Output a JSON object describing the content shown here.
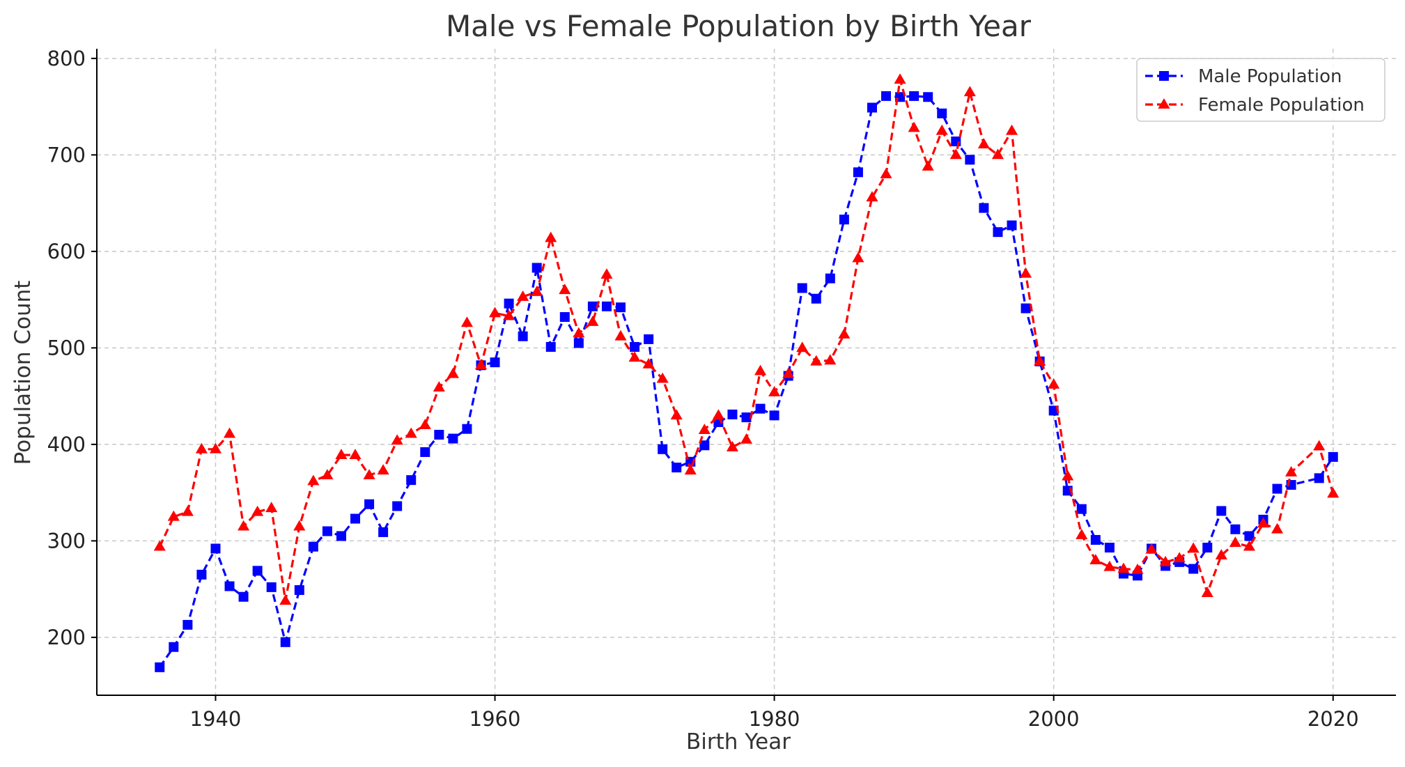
{
  "chart_data": {
    "type": "line",
    "title": "Male vs Female Population by Birth Year",
    "xlabel": "Birth Year",
    "ylabel": "Population Count",
    "xlim": [
      1931.5,
      2024.5
    ],
    "ylim": [
      140,
      810
    ],
    "x_ticks": [
      1940,
      1960,
      1980,
      2000,
      2020
    ],
    "y_ticks": [
      200,
      300,
      400,
      500,
      600,
      700,
      800
    ],
    "grid": true,
    "legend_position": "top-right",
    "x": [
      1936,
      1937,
      1938,
      1939,
      1940,
      1941,
      1942,
      1943,
      1944,
      1945,
      1946,
      1947,
      1948,
      1949,
      1950,
      1951,
      1952,
      1953,
      1954,
      1955,
      1956,
      1957,
      1958,
      1959,
      1960,
      1961,
      1962,
      1963,
      1964,
      1965,
      1966,
      1967,
      1968,
      1969,
      1970,
      1971,
      1972,
      1973,
      1974,
      1975,
      1976,
      1977,
      1978,
      1979,
      1980,
      1981,
      1982,
      1983,
      1984,
      1985,
      1986,
      1987,
      1988,
      1989,
      1990,
      1991,
      1992,
      1993,
      1994,
      1995,
      1996,
      1997,
      1998,
      1999,
      2000,
      2001,
      2002,
      2003,
      2004,
      2005,
      2006,
      2007,
      2008,
      2009,
      2010,
      2011,
      2012,
      2013,
      2014,
      2015,
      2016,
      2017,
      2019,
      2020
    ],
    "series": [
      {
        "name": "Male Population",
        "color": "#0000ff",
        "marker": "square",
        "x": [
          1936,
          1937,
          1938,
          1939,
          1940,
          1941,
          1942,
          1943,
          1944,
          1945,
          1946,
          1947,
          1948,
          1949,
          1950,
          1951,
          1952,
          1953,
          1954,
          1955,
          1956,
          1957,
          1958,
          1959,
          1960,
          1961,
          1962,
          1963,
          1964,
          1965,
          1966,
          1967,
          1968,
          1969,
          1970,
          1971,
          1972,
          1973,
          1974,
          1975,
          1976,
          1977,
          1978,
          1979,
          1980,
          1981,
          1982,
          1983,
          1984,
          1985,
          1986,
          1987,
          1988,
          1989,
          1990,
          1991,
          1992,
          1993,
          1994,
          1995,
          1996,
          1997,
          1998,
          1999,
          2000,
          2001,
          2002,
          2003,
          2004,
          2005,
          2006,
          2007,
          2008,
          2009,
          2010,
          2011,
          2012,
          2013,
          2014,
          2015,
          2016,
          2017,
          2019,
          2020
        ],
        "values": [
          169,
          190,
          213,
          265,
          292,
          253,
          242,
          269,
          252,
          195,
          249,
          294,
          310,
          305,
          323,
          338,
          309,
          336,
          363,
          392,
          410,
          406,
          416,
          482,
          485,
          546,
          512,
          583,
          501,
          532,
          505,
          543,
          543,
          542,
          501,
          509,
          395,
          376,
          382,
          399,
          423,
          431,
          428,
          437,
          430,
          471,
          562,
          551,
          572,
          633,
          682,
          749,
          761,
          760,
          761,
          760,
          743,
          714,
          695,
          645,
          620,
          627,
          541,
          486,
          435,
          352,
          333,
          301,
          293,
          266,
          264,
          292,
          274,
          278,
          271,
          293,
          331,
          312,
          305,
          322,
          354,
          358,
          365,
          387
        ]
      },
      {
        "name": "Female Population",
        "color": "#ff0000",
        "marker": "triangle",
        "x": [
          1936,
          1937,
          1938,
          1939,
          1940,
          1941,
          1942,
          1943,
          1944,
          1945,
          1946,
          1947,
          1948,
          1949,
          1950,
          1951,
          1952,
          1953,
          1954,
          1955,
          1956,
          1957,
          1958,
          1959,
          1960,
          1961,
          1962,
          1963,
          1964,
          1965,
          1966,
          1967,
          1968,
          1969,
          1970,
          1971,
          1972,
          1973,
          1974,
          1975,
          1976,
          1977,
          1978,
          1979,
          1980,
          1981,
          1982,
          1983,
          1984,
          1985,
          1986,
          1987,
          1988,
          1989,
          1990,
          1991,
          1992,
          1993,
          1994,
          1995,
          1996,
          1997,
          1998,
          1999,
          2000,
          2001,
          2002,
          2003,
          2004,
          2005,
          2006,
          2007,
          2008,
          2009,
          2010,
          2011,
          2012,
          2013,
          2014,
          2015,
          2016,
          2017,
          2019,
          2020
        ],
        "values": [
          294,
          325,
          330,
          395,
          395,
          411,
          315,
          330,
          334,
          238,
          315,
          362,
          368,
          389,
          389,
          368,
          373,
          404,
          411,
          420,
          459,
          473,
          526,
          482,
          536,
          533,
          553,
          558,
          614,
          560,
          515,
          527,
          576,
          512,
          490,
          483,
          468,
          430,
          373,
          415,
          430,
          397,
          405,
          476,
          454,
          473,
          500,
          486,
          487,
          514,
          593,
          656,
          680,
          778,
          728,
          688,
          725,
          700,
          765,
          711,
          700,
          725,
          577,
          486,
          462,
          367,
          306,
          280,
          273,
          271,
          270,
          291,
          278,
          282,
          292,
          246,
          285,
          298,
          294,
          318,
          312,
          371,
          398,
          349
        ]
      }
    ]
  }
}
